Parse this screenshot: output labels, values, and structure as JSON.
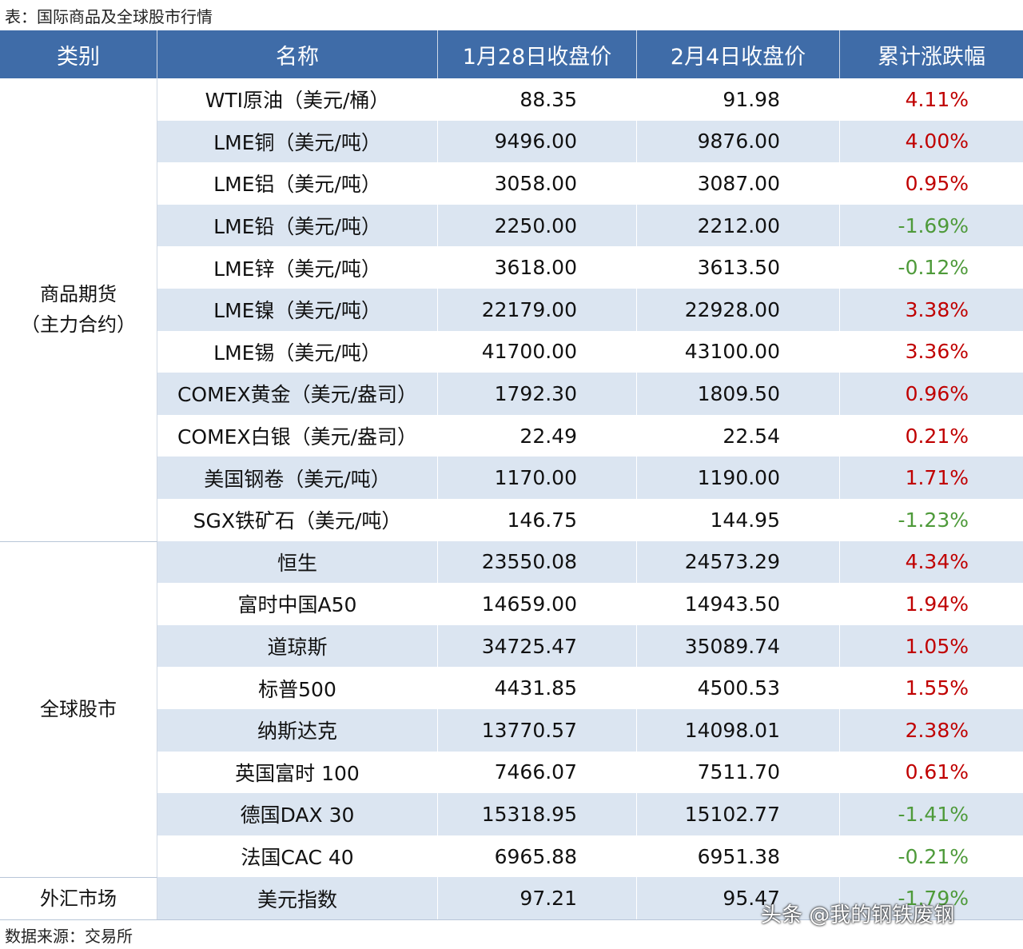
{
  "header": {
    "title": "表：国际商品及全球股市行情"
  },
  "table": {
    "columns": [
      "类别",
      "名称",
      "1月28日收盘价",
      "2月4日收盘价",
      "累计涨跌幅"
    ],
    "groups": [
      {
        "category": [
          "商品期货",
          "（主力合约）"
        ],
        "rows": [
          [
            "WTI原油（美元/桶）",
            "88.35",
            "91.98",
            "4.11%"
          ],
          [
            "LME铜（美元/吨）",
            "9496.00",
            "9876.00",
            "4.00%"
          ],
          [
            "LME铝（美元/吨）",
            "3058.00",
            "3087.00",
            "0.95%"
          ],
          [
            "LME铅（美元/吨）",
            "2250.00",
            "2212.00",
            "-1.69%"
          ],
          [
            "LME锌（美元/吨）",
            "3618.00",
            "3613.50",
            "-0.12%"
          ],
          [
            "LME镍（美元/吨）",
            "22179.00",
            "22928.00",
            "3.38%"
          ],
          [
            "LME锡（美元/吨）",
            "41700.00",
            "43100.00",
            "3.36%"
          ],
          [
            "COMEX黄金（美元/盎司）",
            "1792.30",
            "1809.50",
            "0.96%"
          ],
          [
            "COMEX白银（美元/盎司）",
            "22.49",
            "22.54",
            "0.21%"
          ],
          [
            "美国钢卷（美元/吨）",
            "1170.00",
            "1190.00",
            "1.71%"
          ],
          [
            "SGX铁矿石（美元/吨）",
            "146.75",
            "144.95",
            "-1.23%"
          ]
        ]
      },
      {
        "category": [
          "全球股市"
        ],
        "rows": [
          [
            "恒生",
            "23550.08",
            "24573.29",
            "4.34%"
          ],
          [
            "富时中国A50",
            "14659.00",
            "14943.50",
            "1.94%"
          ],
          [
            "道琼斯",
            "34725.47",
            "35089.74",
            "1.05%"
          ],
          [
            "标普500",
            "4431.85",
            "4500.53",
            "1.55%"
          ],
          [
            "纳斯达克",
            "13770.57",
            "14098.01",
            "2.38%"
          ],
          [
            "英国富时 100",
            "7466.07",
            "7511.70",
            "0.61%"
          ],
          [
            "德国DAX 30",
            "15318.95",
            "15102.77",
            "-1.41%"
          ],
          [
            "法国CAC 40",
            "6965.88",
            "6951.38",
            "-0.21%"
          ]
        ]
      },
      {
        "category": [
          "外汇市场"
        ],
        "rows": [
          [
            "美元指数",
            "97.21",
            "95.47",
            "-1.79%"
          ]
        ]
      }
    ]
  },
  "footer": {
    "source": "数据来源：交易所"
  },
  "watermark": "头条 @我的钢铁废钢"
}
